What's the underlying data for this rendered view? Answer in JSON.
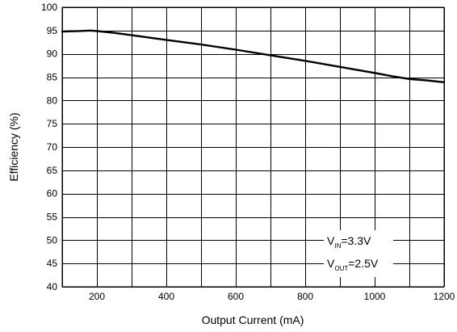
{
  "chart_data": {
    "type": "line",
    "xlabel": "Output Current (mA)",
    "ylabel": "Efficiency (%)",
    "xlim": [
      100,
      1200
    ],
    "ylim": [
      40,
      100
    ],
    "x_ticks": [
      200,
      400,
      600,
      800,
      1000,
      1200
    ],
    "x_grid": [
      100,
      200,
      300,
      400,
      500,
      600,
      700,
      800,
      900,
      1000,
      1100,
      1200
    ],
    "y_ticks": [
      40,
      45,
      50,
      55,
      60,
      65,
      70,
      75,
      80,
      85,
      90,
      95,
      100
    ],
    "grid": true,
    "series": [
      {
        "x": [
          100,
          150,
          180,
          200,
          250,
          300,
          400,
          500,
          600,
          700,
          800,
          900,
          1000,
          1050,
          1100,
          1150,
          1200
        ],
        "y": [
          94.8,
          94.9,
          95.0,
          94.9,
          94.5,
          94.0,
          93.0,
          92.0,
          90.9,
          89.7,
          88.5,
          87.2,
          85.9,
          85.2,
          84.6,
          84.3,
          83.9
        ]
      }
    ],
    "annotations": [
      {
        "main": "V",
        "sub": "IN",
        "rest": "=3.3V"
      },
      {
        "main": "V",
        "sub": "OUT",
        "rest": "=2.5V"
      }
    ]
  }
}
